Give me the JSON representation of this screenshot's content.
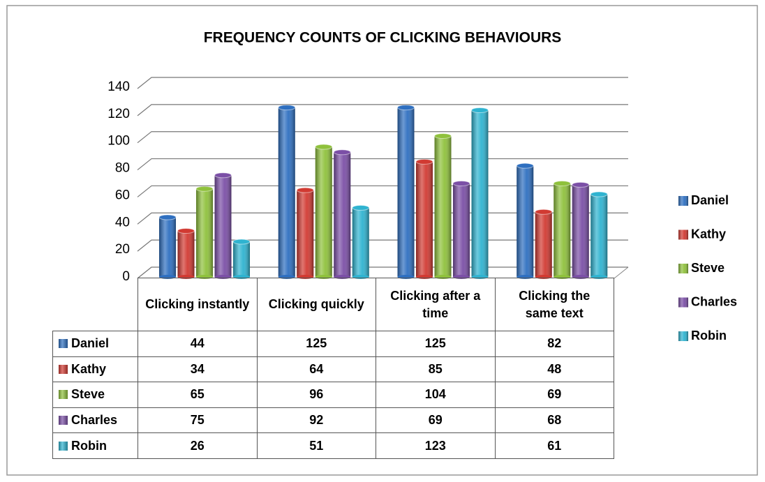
{
  "chart_data": {
    "type": "bar",
    "title": "FREQUENCY COUNTS OF CLICKING BEHAVIOURS",
    "categories": [
      "Clicking instantly",
      "Clicking quickly",
      "Clicking after a time",
      "Clicking the same text"
    ],
    "series": [
      {
        "name": "Daniel",
        "color": "#2e6fc0",
        "values": [
          44,
          125,
          125,
          82
        ]
      },
      {
        "name": "Kathy",
        "color": "#d13a32",
        "values": [
          34,
          64,
          85,
          48
        ]
      },
      {
        "name": "Steve",
        "color": "#8fc13c",
        "values": [
          65,
          96,
          104,
          69
        ]
      },
      {
        "name": "Charles",
        "color": "#7b4fa6",
        "values": [
          75,
          92,
          69,
          68
        ]
      },
      {
        "name": "Robin",
        "color": "#2fb3d0",
        "values": [
          26,
          51,
          123,
          61
        ]
      }
    ],
    "ylim": [
      0,
      140
    ],
    "yticks": [
      0,
      20,
      40,
      60,
      80,
      100,
      120,
      140
    ],
    "grid": true,
    "legend": "right",
    "data_table": true
  }
}
